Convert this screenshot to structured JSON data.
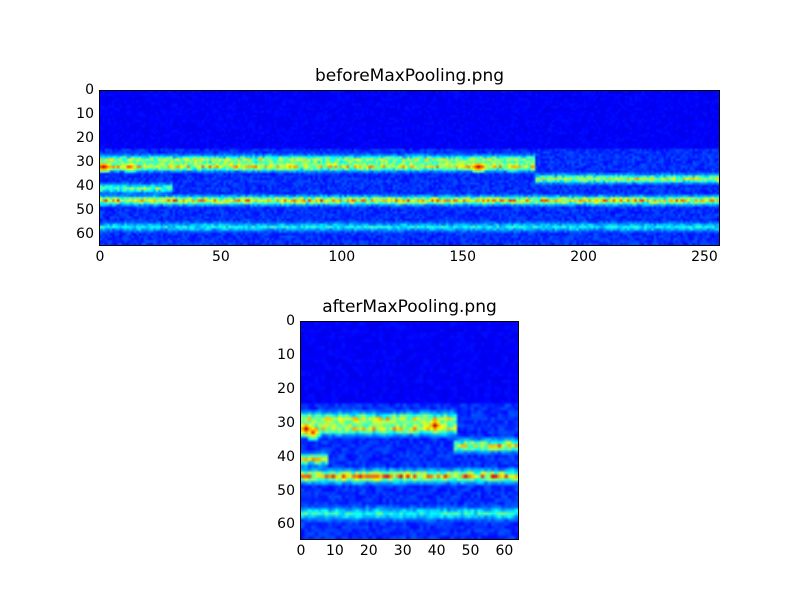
{
  "chart_data": [
    {
      "type": "heatmap",
      "title": "beforeMaxPooling.png",
      "colormap": "jet",
      "shape": [
        64,
        256
      ],
      "xlim": [
        0,
        256
      ],
      "ylim": [
        64,
        0
      ],
      "xticks": [
        0,
        50,
        100,
        150,
        200,
        250
      ],
      "yticks": [
        0,
        10,
        20,
        30,
        40,
        50,
        60
      ],
      "bands": [
        {
          "row": 28,
          "from": 0,
          "to": 180,
          "strength": 0.45
        },
        {
          "row": 31,
          "from": 0,
          "to": 180,
          "strength": 0.55
        },
        {
          "row": 36,
          "from": 180,
          "to": 256,
          "strength": 0.5
        },
        {
          "row": 45,
          "from": 0,
          "to": 256,
          "strength": 0.6
        },
        {
          "row": 40,
          "from": 0,
          "to": 30,
          "strength": 0.4
        },
        {
          "row": 56,
          "from": 0,
          "to": 256,
          "strength": 0.25
        }
      ],
      "hotspots": [
        {
          "row": 31,
          "col": 1,
          "value": 0.95
        },
        {
          "row": 31,
          "col": 12,
          "value": 0.8
        },
        {
          "row": 31,
          "col": 156,
          "value": 0.95
        },
        {
          "row": 31,
          "col": 170,
          "value": 0.7
        }
      ]
    },
    {
      "type": "heatmap",
      "title": "afterMaxPooling.png",
      "colormap": "jet",
      "shape": [
        64,
        64
      ],
      "xlim": [
        0,
        64
      ],
      "ylim": [
        64,
        0
      ],
      "xticks": [
        0,
        10,
        20,
        30,
        40,
        50,
        60
      ],
      "yticks": [
        0,
        10,
        20,
        30,
        40,
        50,
        60
      ],
      "bands": [
        {
          "row": 28,
          "from": 0,
          "to": 46,
          "strength": 0.5
        },
        {
          "row": 31,
          "from": 0,
          "to": 46,
          "strength": 0.55
        },
        {
          "row": 36,
          "from": 45,
          "to": 64,
          "strength": 0.55
        },
        {
          "row": 45,
          "from": 0,
          "to": 64,
          "strength": 0.65
        },
        {
          "row": 40,
          "from": 0,
          "to": 8,
          "strength": 0.5
        },
        {
          "row": 56,
          "from": 0,
          "to": 64,
          "strength": 0.3
        }
      ],
      "hotspots": [
        {
          "row": 31,
          "col": 1,
          "value": 0.95
        },
        {
          "row": 32,
          "col": 3,
          "value": 0.85
        },
        {
          "row": 30,
          "col": 39,
          "value": 0.95
        }
      ]
    }
  ]
}
